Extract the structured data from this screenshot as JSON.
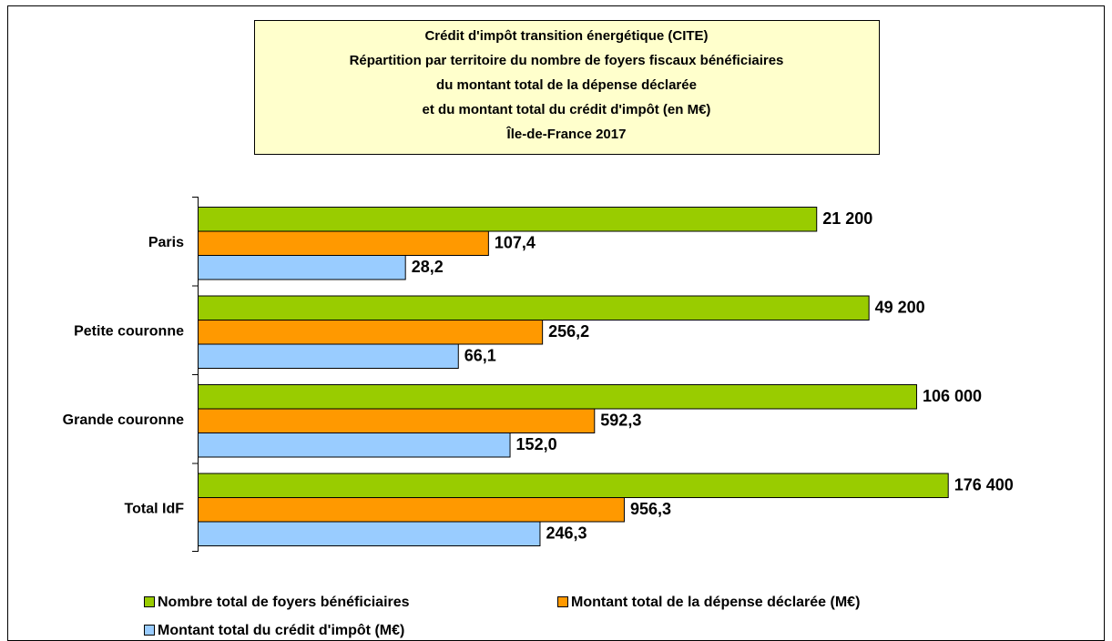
{
  "chart_data": {
    "type": "bar",
    "orientation": "horizontal",
    "title": [
      "Crédit d'impôt transition énergétique (CITE)",
      "Répartition par territoire du nombre de foyers fiscaux bénéficiaires",
      "du montant total de la dépense déclarée",
      "et du montant total du crédit d'impôt (en M€)",
      "Île-de-France 2017"
    ],
    "categories": [
      "Paris",
      "Petite couronne",
      "Grande couronne",
      "Total IdF"
    ],
    "series": [
      {
        "name": "Nombre total de foyers bénéficiaires",
        "color": "#99cc00",
        "values": [
          21200,
          49200,
          106000,
          176400
        ],
        "value_labels": [
          "21 200",
          "49 200",
          "106 000",
          "176 400"
        ]
      },
      {
        "name": "Montant total de la dépense déclarée (M€)",
        "color": "#ff9900",
        "values": [
          107.4,
          256.2,
          592.3,
          956.3
        ],
        "value_labels": [
          "107,4",
          "256,2",
          "592,3",
          "956,3"
        ]
      },
      {
        "name": "Montant total du crédit d'impôt (M€)",
        "color": "#99ccff",
        "values": [
          28.2,
          66.1,
          152.0,
          246.3
        ],
        "value_labels": [
          "28,2",
          "66,1",
          "152,0",
          "246,3"
        ]
      }
    ],
    "xlim": [
      1,
      1000000
    ],
    "log_scale": true,
    "legend": "bottom"
  }
}
